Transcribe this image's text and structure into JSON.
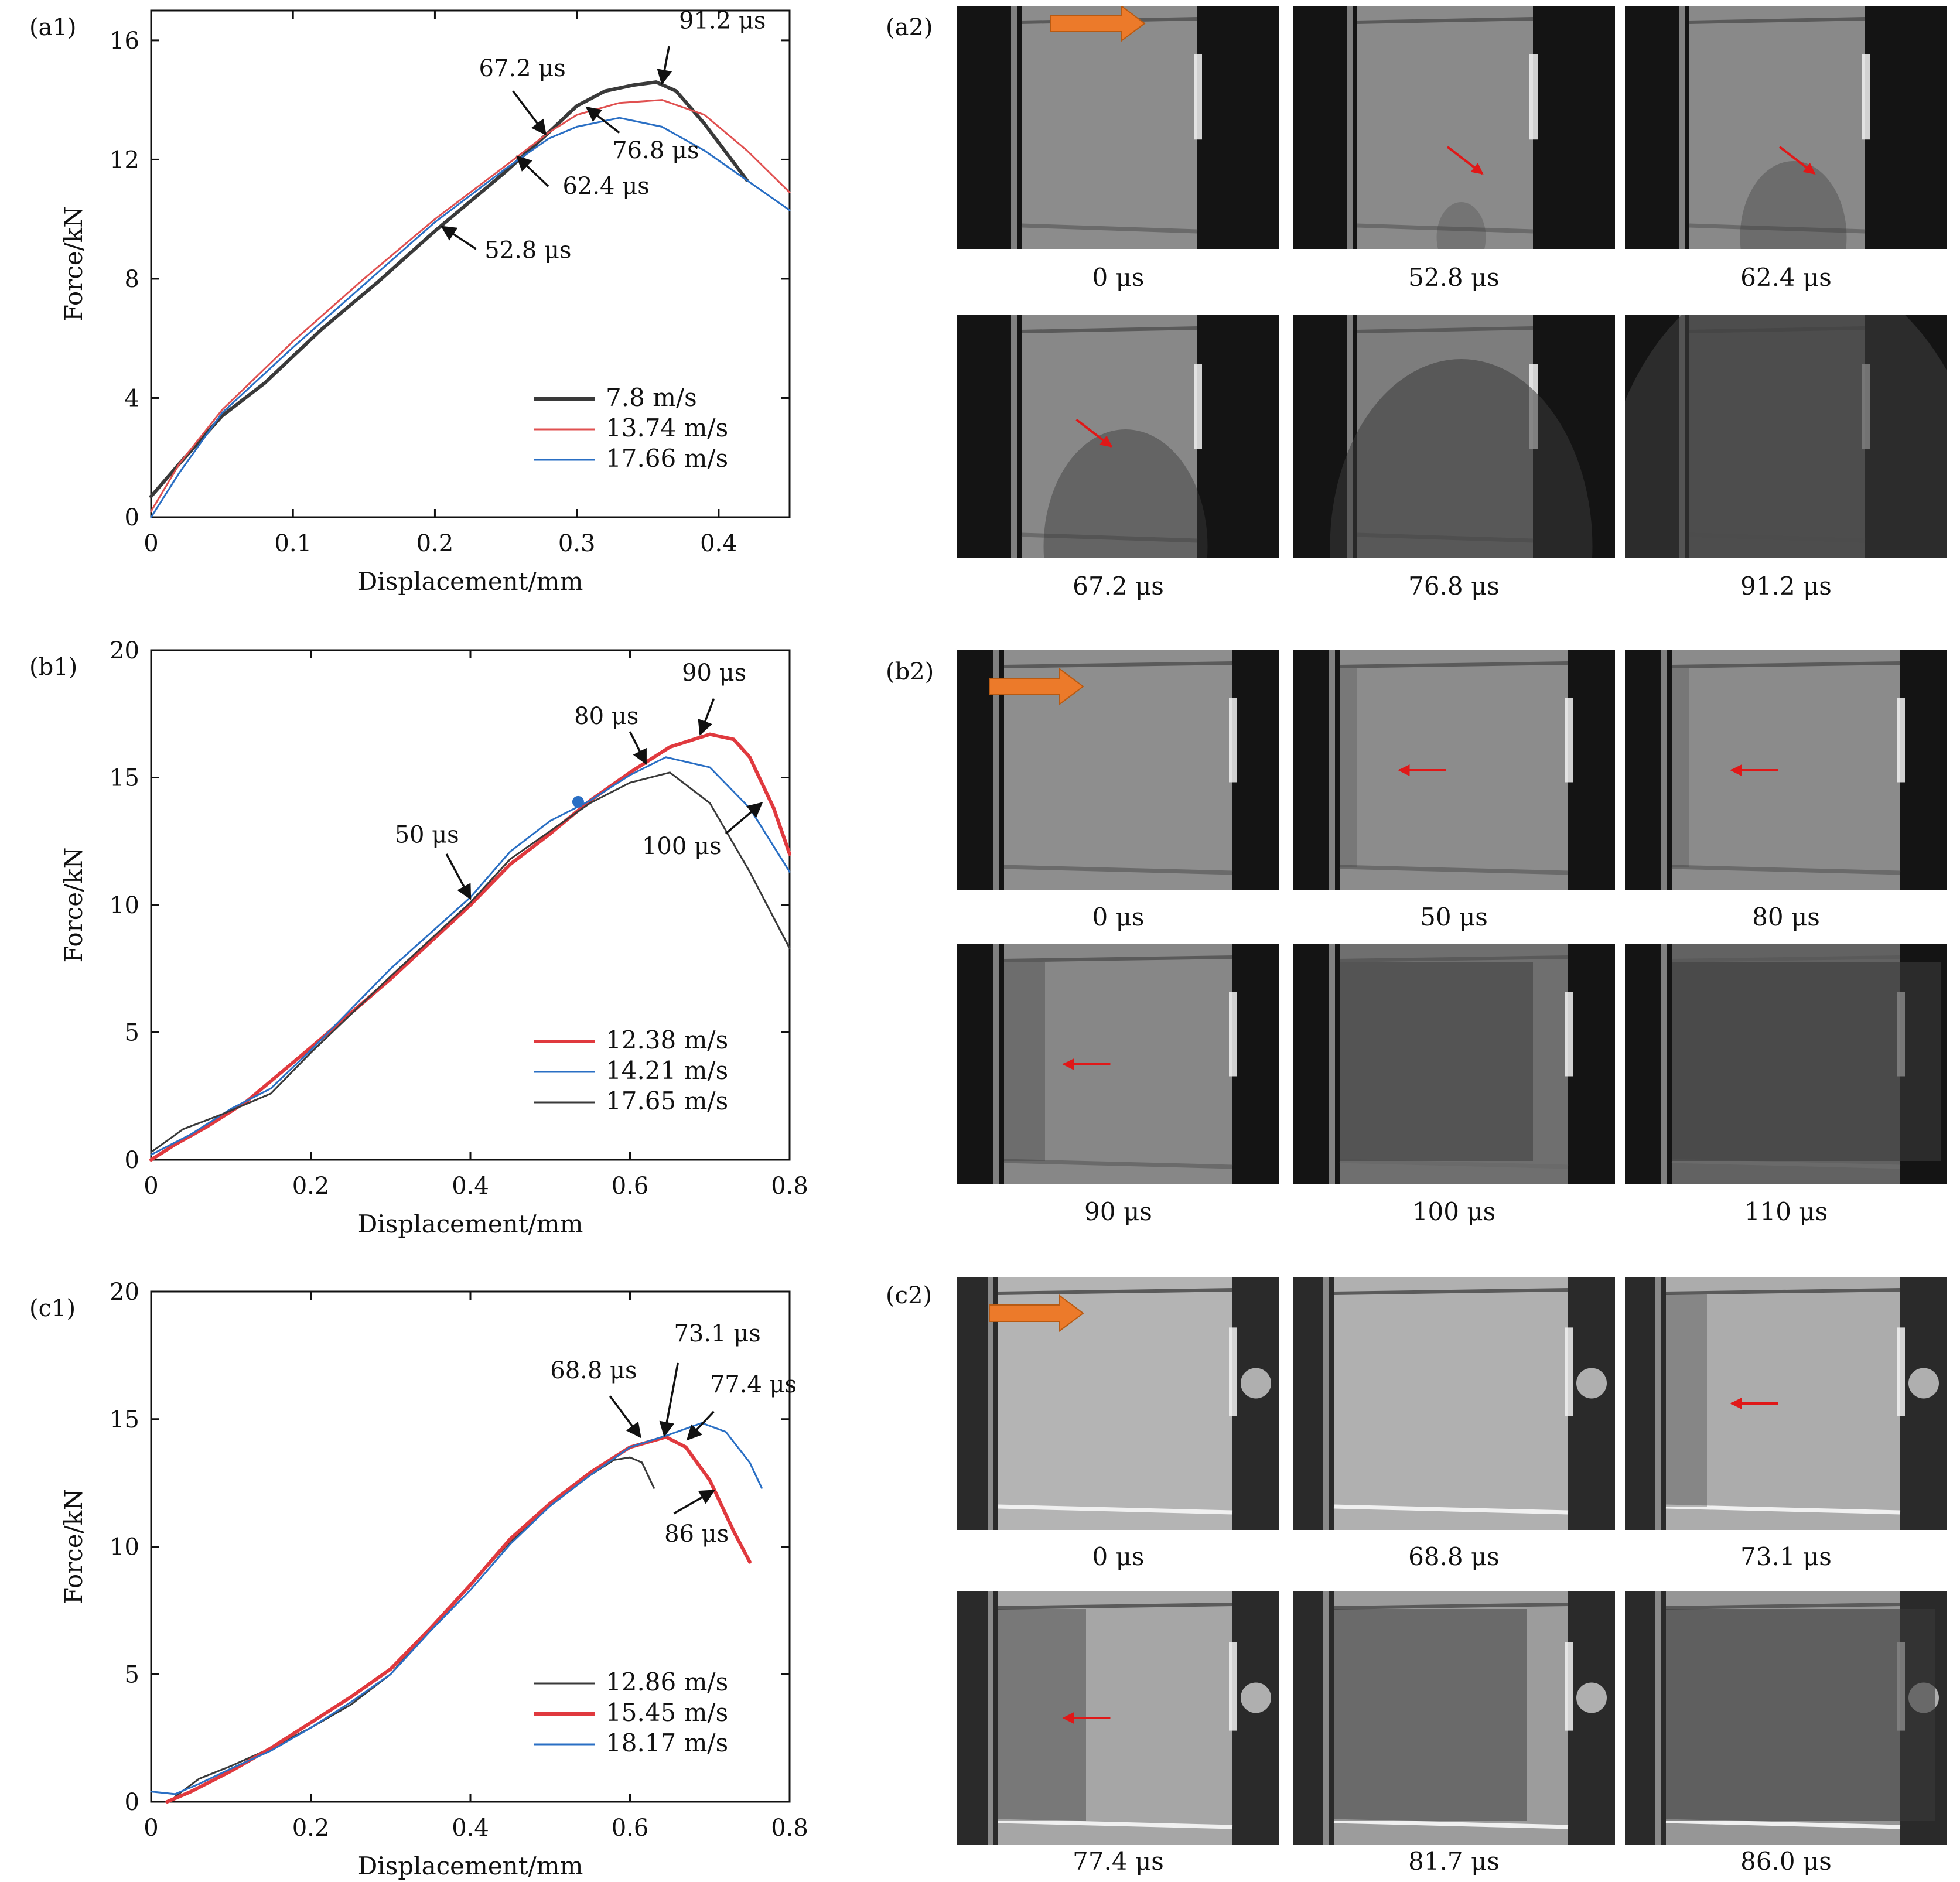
{
  "panels": [
    {
      "id": "a",
      "chart_label": "(a1)",
      "photo_label": "(a2)",
      "chart_data": {
        "type": "line",
        "xlabel": "Displacement/mm",
        "ylabel": "Force/kN",
        "xlim": [
          0,
          0.45
        ],
        "ylim": [
          0,
          17
        ],
        "xticks": [
          0,
          0.1,
          0.2,
          0.3,
          0.4
        ],
        "xtick_labels": [
          "0",
          "0.1",
          "0.2",
          "0.3",
          "0.4"
        ],
        "yticks": [
          0,
          4,
          8,
          12,
          16
        ],
        "ytick_labels": [
          "0",
          "4",
          "8",
          "12",
          "16"
        ],
        "legend_position": "bottom-right",
        "series": [
          {
            "name": "7.8 m/s",
            "color": "#3a3a3a",
            "width": 6,
            "x": [
              0,
              0.02,
              0.05,
              0.08,
              0.12,
              0.16,
              0.2,
              0.25,
              0.28,
              0.3,
              0.32,
              0.34,
              0.356,
              0.37,
              0.39,
              0.42
            ],
            "y": [
              0.7,
              1.8,
              3.4,
              4.5,
              6.3,
              7.9,
              9.6,
              11.6,
              12.9,
              13.8,
              14.3,
              14.5,
              14.6,
              14.3,
              13.2,
              11.3
            ]
          },
          {
            "name": "13.74 m/s",
            "color": "#e05050",
            "width": 3,
            "x": [
              0,
              0.02,
              0.05,
              0.1,
              0.15,
              0.2,
              0.25,
              0.28,
              0.3,
              0.33,
              0.36,
              0.39,
              0.42,
              0.45
            ],
            "y": [
              0.2,
              1.8,
              3.6,
              5.9,
              8.0,
              10.0,
              11.8,
              12.9,
              13.5,
              13.9,
              14.0,
              13.5,
              12.3,
              10.9
            ]
          },
          {
            "name": "17.66 m/s",
            "color": "#2a6fc4",
            "width": 3,
            "x": [
              0,
              0.02,
              0.05,
              0.1,
              0.15,
              0.2,
              0.25,
              0.28,
              0.3,
              0.33,
              0.36,
              0.39,
              0.42,
              0.45
            ],
            "y": [
              0.0,
              1.5,
              3.5,
              5.7,
              7.8,
              9.9,
              11.7,
              12.7,
              13.1,
              13.4,
              13.1,
              12.3,
              11.3,
              10.3
            ]
          }
        ],
        "annotations": [
          {
            "text": "91.2 μs",
            "point": [
              0.36,
              14.55
            ],
            "from": [
              0.365,
              15.8
            ],
            "label": [
              0.372,
              16.4
            ],
            "arrow_color": "#111"
          },
          {
            "text": "67.2 μs",
            "point": [
              0.278,
              12.85
            ],
            "from": [
              0.255,
              14.3
            ],
            "label": [
              0.231,
              14.8
            ],
            "arrow_color": "#111"
          },
          {
            "text": "76.8 μs",
            "point": [
              0.307,
              13.75
            ],
            "from": [
              0.33,
              12.9
            ],
            "label": [
              0.325,
              12.05
            ],
            "arrow_color": "#111"
          },
          {
            "text": "62.4 μs",
            "point": [
              0.258,
              12.1
            ],
            "from": [
              0.28,
              11.1
            ],
            "label": [
              0.29,
              10.85
            ],
            "arrow_color": "#111"
          },
          {
            "text": "52.8 μs",
            "point": [
              0.205,
              9.75
            ],
            "from": [
              0.229,
              9.0
            ],
            "label": [
              0.235,
              8.7
            ],
            "arrow_color": "#111"
          }
        ],
        "markers": []
      },
      "photos": [
        {
          "caption": "0 μs",
          "arrow": "orange",
          "damage": 0,
          "tone": "#8c8c8c"
        },
        {
          "caption": "52.8 μs",
          "arrow": "red-diag",
          "damage": 1,
          "tone": "#8a8a8a"
        },
        {
          "caption": "62.4 μs",
          "arrow": "red-diag",
          "damage": 2,
          "tone": "#898989"
        },
        {
          "caption": "67.2 μs",
          "arrow": "red-diag",
          "damage": 3,
          "tone": "#888888"
        },
        {
          "caption": "76.8 μs",
          "arrow": "none",
          "damage": 4,
          "tone": "#7d7d7d"
        },
        {
          "caption": "91.2 μs",
          "arrow": "none",
          "damage": 5,
          "tone": "#6d6d6d"
        }
      ]
    },
    {
      "id": "b",
      "chart_label": "(b1)",
      "photo_label": "(b2)",
      "chart_data": {
        "type": "line",
        "xlabel": "Displacement/mm",
        "ylabel": "Force/kN",
        "xlim": [
          0,
          0.8
        ],
        "ylim": [
          0,
          20
        ],
        "xticks": [
          0,
          0.2,
          0.4,
          0.6,
          0.8
        ],
        "xtick_labels": [
          "0",
          "0.2",
          "0.4",
          "0.6",
          "0.8"
        ],
        "yticks": [
          0,
          5,
          10,
          15,
          20
        ],
        "ytick_labels": [
          "0",
          "5",
          "10",
          "15",
          "20"
        ],
        "legend_position": "bottom-right",
        "series": [
          {
            "name": "12.38 m/s",
            "color": "#e0393e",
            "width": 6,
            "x": [
              0,
              0.03,
              0.07,
              0.12,
              0.2,
              0.3,
              0.4,
              0.45,
              0.5,
              0.55,
              0.6,
              0.65,
              0.7,
              0.73,
              0.75,
              0.78,
              0.8
            ],
            "y": [
              0.0,
              0.6,
              1.3,
              2.3,
              4.4,
              7.1,
              10.0,
              11.6,
              12.8,
              14.1,
              15.2,
              16.2,
              16.7,
              16.5,
              15.8,
              13.8,
              12.0
            ]
          },
          {
            "name": "14.21 m/s",
            "color": "#2a6fc4",
            "width": 3,
            "x": [
              0,
              0.05,
              0.1,
              0.15,
              0.2,
              0.3,
              0.4,
              0.45,
              0.5,
              0.55,
              0.6,
              0.645,
              0.7,
              0.75,
              0.8
            ],
            "y": [
              0.2,
              1.0,
              2.0,
              2.8,
              4.3,
              7.5,
              10.3,
              12.1,
              13.3,
              14.1,
              15.1,
              15.8,
              15.4,
              13.8,
              11.3
            ]
          },
          {
            "name": "17.65 m/s",
            "color": "#3a3a3a",
            "width": 3,
            "x": [
              0,
              0.04,
              0.09,
              0.15,
              0.2,
              0.3,
              0.4,
              0.45,
              0.5,
              0.55,
              0.6,
              0.65,
              0.7,
              0.75,
              0.8
            ],
            "y": [
              0.3,
              1.2,
              1.8,
              2.6,
              4.2,
              7.2,
              10.1,
              11.8,
              12.9,
              14.0,
              14.8,
              15.2,
              14.0,
              11.3,
              8.3
            ]
          }
        ],
        "annotations": [
          {
            "text": "90 μs",
            "point": [
              0.688,
              16.7
            ],
            "from": [
              0.705,
              18.1
            ],
            "label": [
              0.665,
              18.8
            ],
            "arrow_color": "#111"
          },
          {
            "text": "80 μs",
            "point": [
              0.62,
              15.55
            ],
            "from": [
              0.6,
              16.8
            ],
            "label": [
              0.53,
              17.1
            ],
            "arrow_color": "#111"
          },
          {
            "text": "50 μs",
            "point": [
              0.4,
              10.25
            ],
            "from": [
              0.37,
              12.0
            ],
            "label": [
              0.305,
              12.45
            ],
            "arrow_color": "#111"
          },
          {
            "text": "100 μs",
            "point": [
              0.765,
              14.0
            ],
            "from": [
              0.72,
              12.8
            ],
            "label": [
              0.615,
              12.0
            ],
            "arrow_color": "#111"
          }
        ],
        "markers": [
          {
            "x": 0.535,
            "y": 14.05,
            "color": "#2a6fc4"
          }
        ]
      },
      "photos": [
        {
          "caption": "0 μs",
          "arrow": "orange",
          "damage": 0,
          "tone": "#8e8e8e"
        },
        {
          "caption": "50 μs",
          "arrow": "red-left",
          "damage": 1,
          "tone": "#8c8c8c"
        },
        {
          "caption": "80 μs",
          "arrow": "red-left",
          "damage": 1,
          "tone": "#8b8b8b"
        },
        {
          "caption": "90 μs",
          "arrow": "red-left",
          "damage": 2,
          "tone": "#878787"
        },
        {
          "caption": "100 μs",
          "arrow": "none",
          "damage": 4,
          "tone": "#6f6f6f"
        },
        {
          "caption": "110 μs",
          "arrow": "none",
          "damage": 5,
          "tone": "#626262"
        }
      ]
    },
    {
      "id": "c",
      "chart_label": "(c1)",
      "photo_label": "(c2)",
      "chart_data": {
        "type": "line",
        "xlabel": "Displacement/mm",
        "ylabel": "Force/kN",
        "xlim": [
          0,
          0.8
        ],
        "ylim": [
          0,
          20
        ],
        "xticks": [
          0,
          0.2,
          0.4,
          0.6,
          0.8
        ],
        "xtick_labels": [
          "0",
          "0.2",
          "0.4",
          "0.6",
          "0.8"
        ],
        "yticks": [
          0,
          5,
          10,
          15,
          20
        ],
        "ytick_labels": [
          "0",
          "5",
          "10",
          "15",
          "20"
        ],
        "legend_position": "bottom-right",
        "series": [
          {
            "name": "12.86 m/s",
            "color": "#3a3a3a",
            "width": 3,
            "x": [
              0.03,
              0.06,
              0.1,
              0.15,
              0.2,
              0.25,
              0.3,
              0.35,
              0.4,
              0.45,
              0.5,
              0.55,
              0.58,
              0.6,
              0.615,
              0.63
            ],
            "y": [
              0.2,
              0.9,
              1.4,
              2.1,
              2.9,
              3.8,
              5.0,
              6.8,
              8.5,
              10.2,
              11.6,
              12.8,
              13.4,
              13.5,
              13.3,
              12.3
            ]
          },
          {
            "name": "15.45 m/s",
            "color": "#e0393e",
            "width": 6,
            "x": [
              0.02,
              0.05,
              0.1,
              0.15,
              0.2,
              0.25,
              0.3,
              0.35,
              0.4,
              0.45,
              0.5,
              0.55,
              0.6,
              0.645,
              0.67,
              0.7,
              0.73,
              0.75
            ],
            "y": [
              0.0,
              0.4,
              1.2,
              2.1,
              3.1,
              4.1,
              5.2,
              6.8,
              8.5,
              10.3,
              11.7,
              12.9,
              13.9,
              14.3,
              13.9,
              12.6,
              10.6,
              9.4
            ]
          },
          {
            "name": "18.17 m/s",
            "color": "#2a6fc4",
            "width": 3,
            "x": [
              0.0,
              0.03,
              0.06,
              0.1,
              0.15,
              0.2,
              0.25,
              0.3,
              0.35,
              0.4,
              0.45,
              0.5,
              0.55,
              0.6,
              0.65,
              0.69,
              0.72,
              0.75,
              0.765
            ],
            "y": [
              0.4,
              0.3,
              0.7,
              1.3,
              2.0,
              2.9,
              3.9,
              5.0,
              6.7,
              8.3,
              10.1,
              11.6,
              12.8,
              13.9,
              14.4,
              14.85,
              14.5,
              13.3,
              12.3
            ]
          }
        ],
        "annotations": [
          {
            "text": "68.8 μs",
            "point": [
              0.613,
              14.3
            ],
            "from": [
              0.575,
              15.9
            ],
            "label": [
              0.5,
              16.6
            ],
            "arrow_color": "#111"
          },
          {
            "text": "73.1 μs",
            "point": [
              0.643,
              14.35
            ],
            "from": [
              0.66,
              17.2
            ],
            "label": [
              0.655,
              18.05
            ],
            "arrow_color": "#111"
          },
          {
            "text": "77.4 μs",
            "point": [
              0.672,
              14.2
            ],
            "from": [
              0.705,
              15.3
            ],
            "label": [
              0.7,
              16.05
            ],
            "arrow_color": "#111"
          },
          {
            "text": "86 μs",
            "point": [
              0.705,
              12.2
            ],
            "from": [
              0.655,
              11.3
            ],
            "label": [
              0.643,
              10.2
            ],
            "arrow_color": "#111"
          }
        ],
        "markers": []
      },
      "photos": [
        {
          "caption": "0 μs",
          "arrow": "orange",
          "damage": 0,
          "tone": "#b4b4b4"
        },
        {
          "caption": "68.8 μs",
          "arrow": "none",
          "damage": 0,
          "tone": "#b0b0b0"
        },
        {
          "caption": "73.1 μs",
          "arrow": "red-left",
          "damage": 2,
          "tone": "#acacac"
        },
        {
          "caption": "77.4 μs",
          "arrow": "red-left",
          "damage": 3,
          "tone": "#a6a6a6"
        },
        {
          "caption": "81.7 μs",
          "arrow": "none",
          "damage": 4,
          "tone": "#9c9c9c"
        },
        {
          "caption": "86.0 μs",
          "arrow": "none",
          "damage": 5,
          "tone": "#969696"
        }
      ]
    }
  ]
}
